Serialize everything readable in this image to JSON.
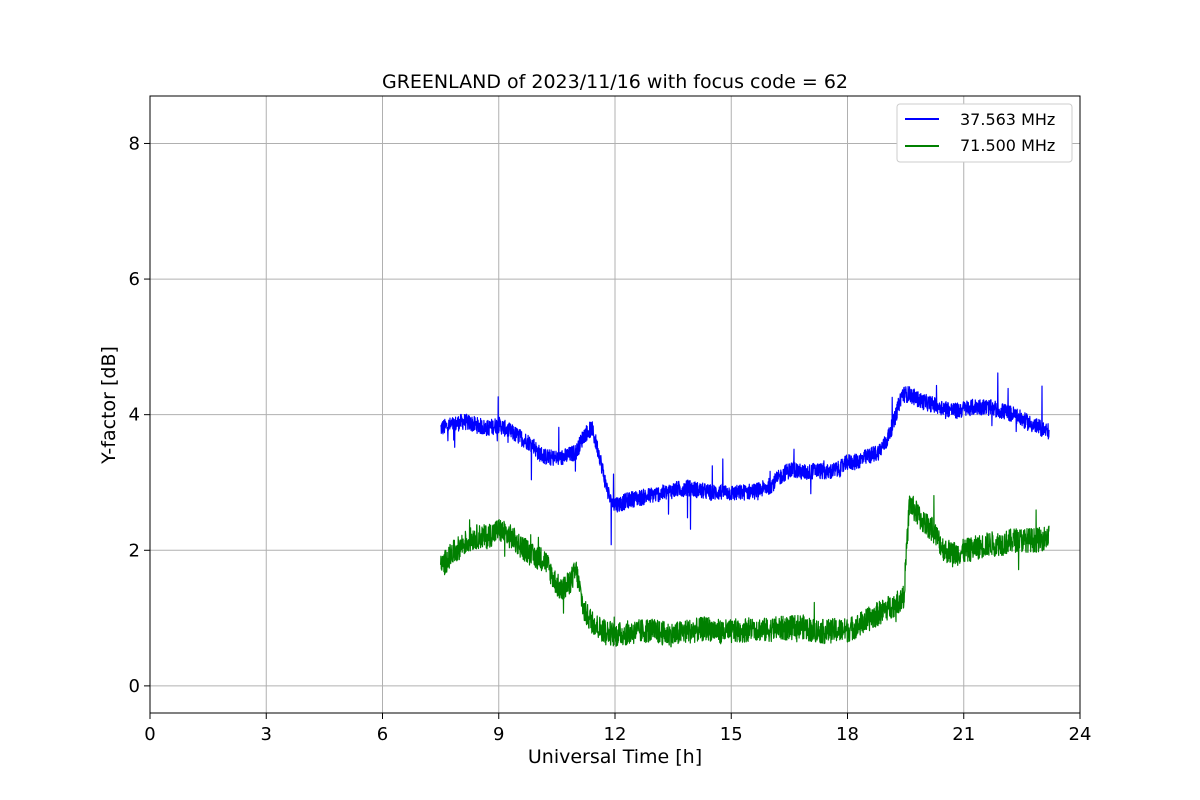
{
  "chart_data": {
    "type": "line",
    "title": "GREENLAND of 2023/11/16 with focus code = 62",
    "xlabel": "Universal Time [h]",
    "ylabel": "Y-factor [dB]",
    "xlim": [
      0,
      24
    ],
    "ylim": [
      -0.4,
      8.7
    ],
    "xticks": [
      0,
      3,
      6,
      9,
      12,
      15,
      18,
      21,
      24
    ],
    "yticks": [
      0,
      2,
      4,
      6,
      8
    ],
    "grid": true,
    "legend_position": "top-right",
    "series": [
      {
        "name": "37.563 MHz",
        "color": "#0000ff",
        "x": [
          7.5,
          7.8,
          8.1,
          8.4,
          8.7,
          9.0,
          9.3,
          9.6,
          9.9,
          10.0,
          10.2,
          10.4,
          10.6,
          10.8,
          11.0,
          11.2,
          11.4,
          11.6,
          11.75,
          11.9,
          12.1,
          12.4,
          12.7,
          13.0,
          13.3,
          13.6,
          13.9,
          14.2,
          14.5,
          14.8,
          15.1,
          15.4,
          15.7,
          16.0,
          16.2,
          16.4,
          16.6,
          16.8,
          17.0,
          17.2,
          17.5,
          17.8,
          18.0,
          18.2,
          18.4,
          18.6,
          18.8,
          19.0,
          19.2,
          19.4,
          19.6,
          19.9,
          20.2,
          20.5,
          20.8,
          21.1,
          21.4,
          21.7,
          22.0,
          22.3,
          22.6,
          22.9,
          23.2
        ],
        "y": [
          3.8,
          3.85,
          3.9,
          3.85,
          3.8,
          3.85,
          3.75,
          3.65,
          3.55,
          3.45,
          3.38,
          3.36,
          3.36,
          3.4,
          3.45,
          3.7,
          3.8,
          3.4,
          3.0,
          2.7,
          2.68,
          2.75,
          2.78,
          2.82,
          2.85,
          2.9,
          2.92,
          2.88,
          2.85,
          2.86,
          2.84,
          2.86,
          2.88,
          2.95,
          3.05,
          3.15,
          3.2,
          3.15,
          3.15,
          3.18,
          3.15,
          3.2,
          3.3,
          3.3,
          3.35,
          3.4,
          3.45,
          3.6,
          3.9,
          4.3,
          4.3,
          4.2,
          4.15,
          4.1,
          4.05,
          4.1,
          4.12,
          4.1,
          4.05,
          4.0,
          3.9,
          3.82,
          3.75
        ]
      },
      {
        "name": "71.500 MHz",
        "color": "#008000",
        "x": [
          7.5,
          7.8,
          8.1,
          8.4,
          8.7,
          9.0,
          9.3,
          9.6,
          9.9,
          10.0,
          10.2,
          10.4,
          10.6,
          10.8,
          11.0,
          11.2,
          11.4,
          11.6,
          11.8,
          12.0,
          12.3,
          12.6,
          12.9,
          13.2,
          13.5,
          13.8,
          14.1,
          14.4,
          14.7,
          15.0,
          15.3,
          15.6,
          15.9,
          16.2,
          16.5,
          16.8,
          17.1,
          17.4,
          17.7,
          18.0,
          18.3,
          18.6,
          18.9,
          19.2,
          19.45,
          19.6,
          19.9,
          20.2,
          20.5,
          20.8,
          21.1,
          21.4,
          21.7,
          22.0,
          22.3,
          22.6,
          22.9,
          23.2
        ],
        "y": [
          1.75,
          1.95,
          2.1,
          2.2,
          2.2,
          2.3,
          2.2,
          2.05,
          1.9,
          1.9,
          1.85,
          1.6,
          1.4,
          1.5,
          1.7,
          1.1,
          0.95,
          0.85,
          0.8,
          0.75,
          0.78,
          0.8,
          0.82,
          0.78,
          0.75,
          0.8,
          0.82,
          0.85,
          0.8,
          0.8,
          0.82,
          0.85,
          0.82,
          0.85,
          0.85,
          0.88,
          0.82,
          0.8,
          0.82,
          0.82,
          0.9,
          1.0,
          1.1,
          1.2,
          1.3,
          2.7,
          2.45,
          2.3,
          2.0,
          1.95,
          2.0,
          2.05,
          2.1,
          2.1,
          2.15,
          2.15,
          2.15,
          2.2
        ]
      }
    ]
  }
}
